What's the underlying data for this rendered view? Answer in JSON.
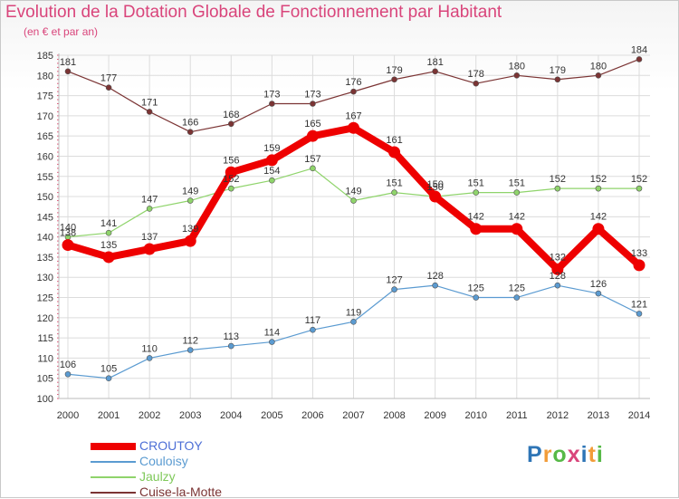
{
  "header": {
    "title": "Evolution de la Dotation Globale de Fonctionnement par Habitant",
    "subtitle": "(en € et par an)"
  },
  "logo": {
    "text": "Proxiti",
    "colors": [
      "#2e75b6",
      "#f29c38",
      "#57b947",
      "#d9457b",
      "#2e75b6",
      "#f29c38",
      "#57b947"
    ]
  },
  "chart_data": {
    "type": "line",
    "title": "Evolution de la Dotation Globale de Fonctionnement par Habitant",
    "subtitle": "(en € et par an)",
    "xlabel": "",
    "ylabel": "",
    "x": [
      "2000",
      "2001",
      "2002",
      "2003",
      "2004",
      "2005",
      "2006",
      "2007",
      "2008",
      "2009",
      "2010",
      "2011",
      "2012",
      "2013",
      "2014"
    ],
    "ylim": [
      100,
      185
    ],
    "yticks": [
      100,
      105,
      110,
      115,
      120,
      125,
      130,
      135,
      140,
      145,
      150,
      155,
      160,
      165,
      170,
      175,
      180,
      185
    ],
    "grid": true,
    "legend_position": "bottom-left",
    "series": [
      {
        "name": "CROUTOY",
        "color": "#ee0000",
        "legend_text_color": "#4d6fd6",
        "width": 8,
        "values": [
          138,
          135,
          137,
          139,
          156,
          159,
          165,
          167,
          161,
          150,
          142,
          142,
          132,
          142,
          133
        ]
      },
      {
        "name": "Couloisy",
        "color": "#5b9bd1",
        "legend_text_color": "#5b9bd1",
        "width": 1.2,
        "values": [
          106,
          105,
          110,
          112,
          113,
          114,
          117,
          119,
          127,
          128,
          125,
          125,
          128,
          126,
          121
        ]
      },
      {
        "name": "Jaulzy",
        "color": "#8fd46b",
        "legend_text_color": "#7fc95a",
        "width": 1.2,
        "values": [
          140,
          141,
          147,
          149,
          152,
          154,
          157,
          149,
          151,
          150,
          151,
          151,
          152,
          152,
          152
        ]
      },
      {
        "name": "Cuise-la-Motte",
        "color": "#7b3434",
        "legend_text_color": "#7b3434",
        "width": 1.2,
        "values": [
          181,
          177,
          171,
          166,
          168,
          173,
          173,
          176,
          179,
          181,
          178,
          180,
          179,
          180,
          184
        ]
      }
    ]
  }
}
